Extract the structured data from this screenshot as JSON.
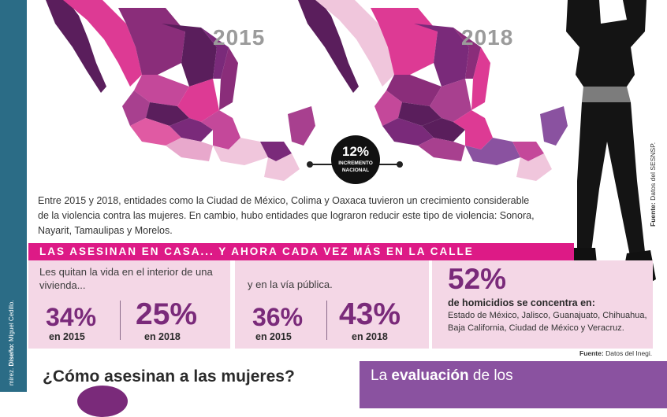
{
  "maps": {
    "year_left": "2015",
    "year_right": "2018"
  },
  "badge": {
    "value": "12%",
    "label_line1": "INCREMENTO",
    "label_line2": "NACIONAL"
  },
  "intro_text": "Entre 2015 y 2018, entidades como la Ciudad de México, Colima y Oaxaca tuvieron un crecimiento considerable de la violencia contra las mujeres. En cambio, hubo entidades que lograron reducir este tipo de violencia: Sonora, Nayarit, Tamaulipas y Morelos.",
  "banner_title": "LAS ASESINAN EN CASA... Y AHORA CADA VEZ MÁS EN LA CALLE",
  "panels": {
    "home": {
      "text": "Les quitan la vida en el interior de una vivienda...",
      "value_2015": "34%",
      "label_2015": "en 2015",
      "value_2018": "25%",
      "label_2018": "en 2018"
    },
    "street": {
      "text": "y en la vía pública.",
      "value_2015": "36%",
      "label_2015": "en 2015",
      "value_2018": "43%",
      "label_2018": "en 2018"
    },
    "concentration": {
      "value": "52%",
      "headline": "de homicidios se concentra en:",
      "states": "Estado de México, Jalisco, Guanajuato, Chihuahua, Baja California, Ciudad de México y Veracruz."
    }
  },
  "sources": {
    "inegi_label": "Fuente:",
    "inegi_text": "Datos del Inegi.",
    "sesnsp_label": "Fuente:",
    "sesnsp_text": "Datos del SESNSP."
  },
  "credit": {
    "prefix": "mírez.",
    "design_label": "Diseño:",
    "designer": "Miguel Cedillo."
  },
  "question_heading": "¿Cómo asesinan a las mujeres?",
  "evaluation": {
    "before": "La ",
    "highlight": "evaluación",
    "after": " de los"
  },
  "colors": {
    "accent_pink": "#dd1a86",
    "panel_pink": "#f4d7e6",
    "big_number_purple": "#7a2a7a",
    "map_dark_purple": "#5a1e5c",
    "map_light_pink": "#f0c6dc",
    "side_strip_teal": "#2b6c86",
    "evaluation_box_purple": "#8a52a0"
  }
}
